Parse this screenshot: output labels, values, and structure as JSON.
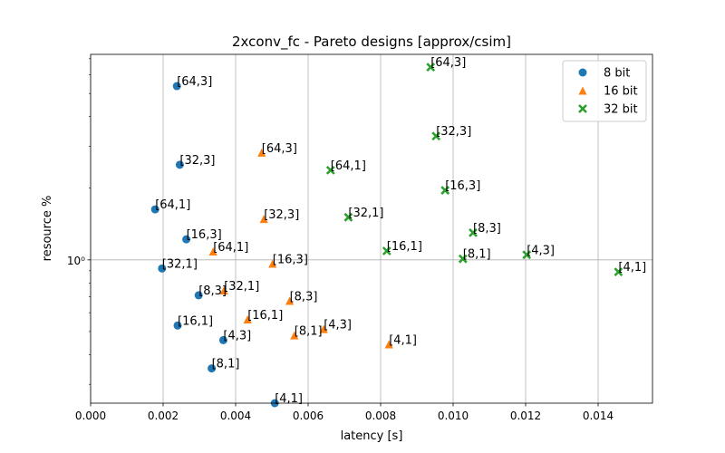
{
  "chart_data": {
    "type": "scatter",
    "title": "2xconv_fc - Pareto designs [approx/csim]",
    "xlabel": "latency [s]",
    "ylabel": "resource %",
    "xlim": [
      0.0,
      0.0155
    ],
    "ylim": [
      0.25,
      7.3
    ],
    "y_scale": "log",
    "x_ticks": [
      0.0,
      0.002,
      0.004,
      0.006,
      0.008,
      0.01,
      0.012,
      0.014
    ],
    "x_tick_labels": [
      "0.000",
      "0.002",
      "0.004",
      "0.006",
      "0.008",
      "0.010",
      "0.012",
      "0.014"
    ],
    "y_ticks": [
      1.0
    ],
    "y_tick_labels": [
      "10⁰"
    ],
    "grid": true,
    "legend_position": "top-right",
    "series": [
      {
        "name": "8 bit",
        "marker": "circle",
        "color": "#1f77b4",
        "points": [
          {
            "x": 0.00238,
            "y": 5.37,
            "label": "[64,3]"
          },
          {
            "x": 0.00246,
            "y": 2.51,
            "label": "[32,3]"
          },
          {
            "x": 0.00178,
            "y": 1.63,
            "label": "[64,1]"
          },
          {
            "x": 0.00264,
            "y": 1.22,
            "label": "[16,3]"
          },
          {
            "x": 0.00197,
            "y": 0.92,
            "label": "[32,1]"
          },
          {
            "x": 0.00298,
            "y": 0.71,
            "label": "[8,3]"
          },
          {
            "x": 0.0024,
            "y": 0.53,
            "label": "[16,1]"
          },
          {
            "x": 0.00366,
            "y": 0.46,
            "label": "[4,3]"
          },
          {
            "x": 0.00334,
            "y": 0.35,
            "label": "[8,1]"
          },
          {
            "x": 0.00508,
            "y": 0.25,
            "label": "[4,1]"
          }
        ]
      },
      {
        "name": "16 bit",
        "marker": "triangle",
        "color": "#ff7f0e",
        "points": [
          {
            "x": 0.00472,
            "y": 2.81,
            "label": "[64,3]"
          },
          {
            "x": 0.00478,
            "y": 1.48,
            "label": "[32,3]"
          },
          {
            "x": 0.00338,
            "y": 1.08,
            "label": "[64,1]"
          },
          {
            "x": 0.00502,
            "y": 0.96,
            "label": "[16,3]"
          },
          {
            "x": 0.00368,
            "y": 0.74,
            "label": "[32,1]"
          },
          {
            "x": 0.00549,
            "y": 0.67,
            "label": "[8,3]"
          },
          {
            "x": 0.00433,
            "y": 0.56,
            "label": "[16,1]"
          },
          {
            "x": 0.00562,
            "y": 0.48,
            "label": "[8,1]"
          },
          {
            "x": 0.00643,
            "y": 0.51,
            "label": "[4,3]"
          },
          {
            "x": 0.00823,
            "y": 0.44,
            "label": "[4,1]"
          }
        ]
      },
      {
        "name": "32 bit",
        "marker": "x",
        "color": "#2ca02c",
        "points": [
          {
            "x": 0.00938,
            "y": 6.45,
            "label": "[64,3]"
          },
          {
            "x": 0.00953,
            "y": 3.31,
            "label": "[32,3]"
          },
          {
            "x": 0.00662,
            "y": 2.38,
            "label": "[64,1]"
          },
          {
            "x": 0.00978,
            "y": 1.96,
            "label": "[16,3]"
          },
          {
            "x": 0.00711,
            "y": 1.51,
            "label": "[32,1]"
          },
          {
            "x": 0.01055,
            "y": 1.3,
            "label": "[8,3]"
          },
          {
            "x": 0.00817,
            "y": 1.09,
            "label": "[16,1]"
          },
          {
            "x": 0.01027,
            "y": 1.01,
            "label": "[8,1]"
          },
          {
            "x": 0.01203,
            "y": 1.05,
            "label": "[4,3]"
          },
          {
            "x": 0.01456,
            "y": 0.89,
            "label": "[4,1]"
          }
        ]
      }
    ]
  }
}
